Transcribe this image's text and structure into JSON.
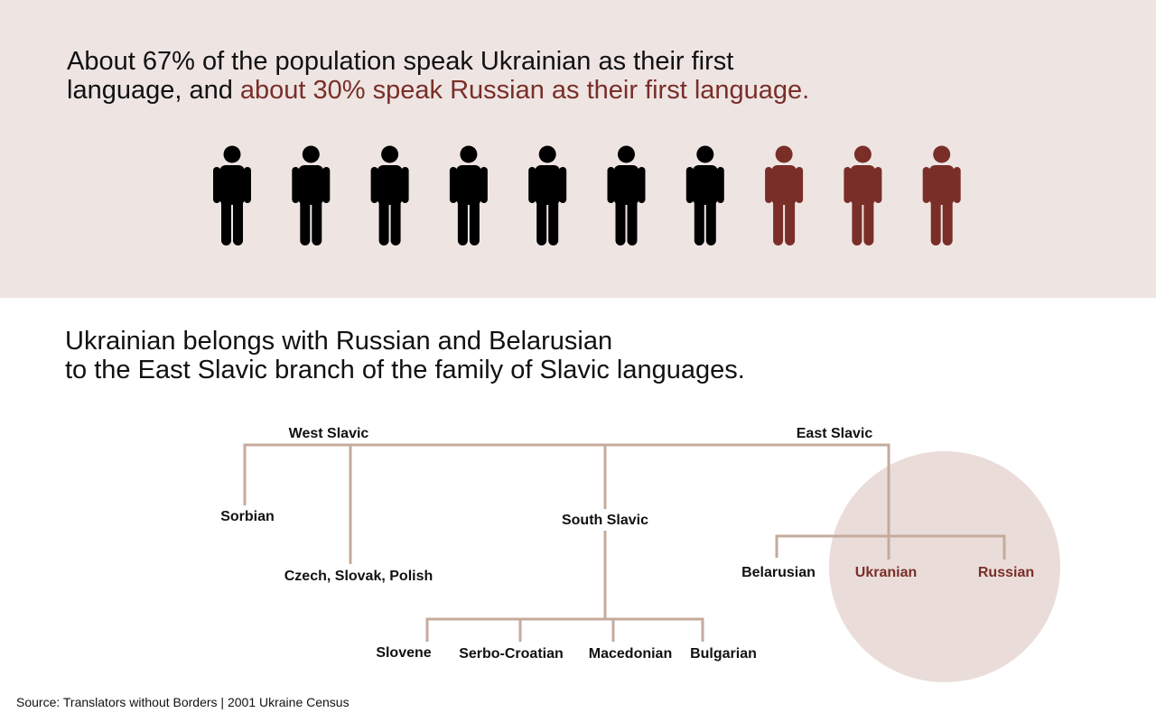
{
  "population": {
    "headline_part1": "About 67% of the population speak Ukrainian as their first",
    "headline_part2": "language, and ",
    "headline_accent": "about 30% speak Russian as their first language.",
    "figures_total": 10,
    "figures_ukrainian": 7,
    "figures_russian": 3,
    "colors": {
      "ukrainian": "#000000",
      "russian": "#7a2e28",
      "panel": "#eee5e3"
    }
  },
  "family": {
    "headline_line1": "Ukrainian belongs with Russian and Belarusian",
    "headline_line2": "to the East Slavic branch of the family of Slavic languages.",
    "branches": {
      "west": "West Slavic",
      "east": "East Slavic",
      "south": "South Slavic"
    },
    "languages": {
      "sorbian": "Sorbian",
      "czech_slovak_polish": "Czech, Slovak, Polish",
      "slovene": "Slovene",
      "serbo_croatian": "Serbo-Croatian",
      "macedonian": "Macedonian",
      "bulgarian": "Bulgarian",
      "belarusian": "Belarusian",
      "ukranian": "Ukranian",
      "russian": "Russian"
    },
    "colors": {
      "line": "#c4ab9d",
      "highlight": "#7a2e28",
      "circle": "#eadcd9"
    }
  },
  "source": "Source: Translators without Borders | 2001 Ukraine Census"
}
